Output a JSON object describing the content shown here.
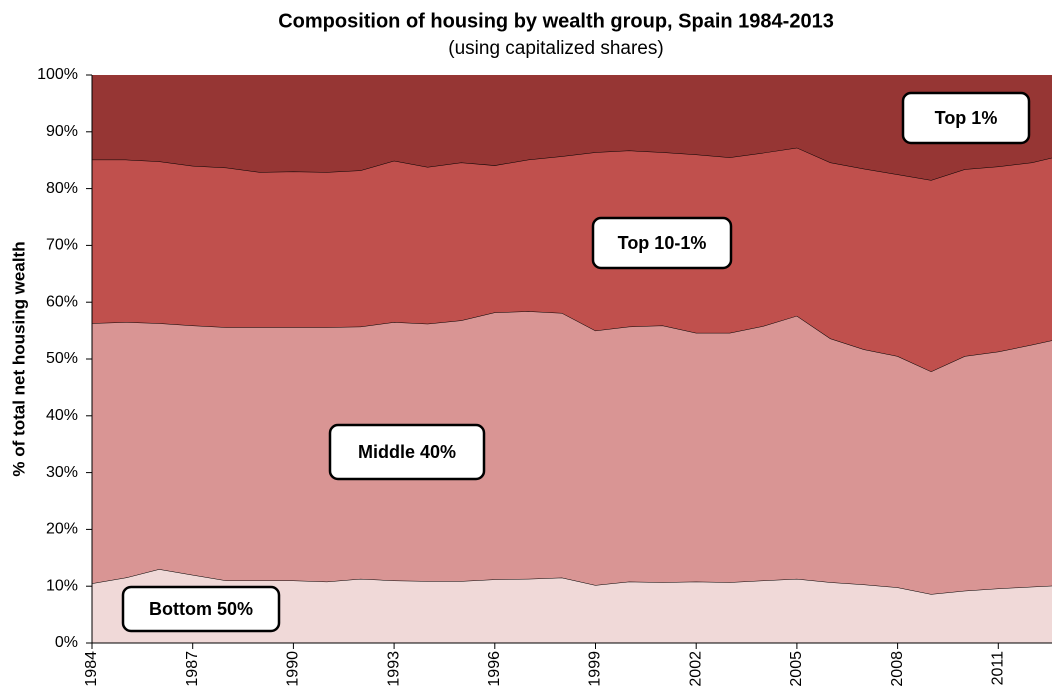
{
  "chart_data": {
    "type": "stacked_area",
    "title": "Composition of housing by wealth group, Spain 1984-2013",
    "subtitle": "(using capitalized shares)",
    "y_label": "% of total net housing wealth",
    "x": [
      1984,
      1985,
      1986,
      1987,
      1988,
      1989,
      1990,
      1991,
      1992,
      1993,
      1994,
      1995,
      1996,
      1997,
      1998,
      1999,
      2000,
      2001,
      2002,
      2003,
      2004,
      2005,
      2006,
      2007,
      2008,
      2009,
      2010,
      2011,
      2012,
      2013
    ],
    "series": [
      {
        "name": "Bottom 50%",
        "color": "#f0d9d8",
        "values": [
          10.5,
          11.5,
          13,
          12,
          11,
          11,
          11,
          10.8,
          11.3,
          11,
          10.9,
          10.9,
          11.2,
          11.3,
          11.5,
          10.2,
          10.8,
          10.7,
          10.8,
          10.7,
          11,
          11.3,
          10.7,
          10.3,
          9.8,
          8.6,
          9.2,
          9.6,
          9.9,
          10.2
        ]
      },
      {
        "name": "Middle 40%",
        "color": "#d99594",
        "values": [
          45.8,
          45.0,
          43.3,
          43.9,
          44.6,
          44.6,
          44.6,
          44.8,
          44.4,
          45.5,
          45.3,
          45.9,
          47.0,
          47.1,
          46.6,
          44.8,
          44.9,
          45.2,
          43.8,
          43.9,
          44.8,
          46.3,
          42.9,
          41.4,
          40.7,
          39.2,
          41.3,
          41.7,
          42.6,
          43.6
        ]
      },
      {
        "name": "Top 10-1%",
        "color": "#c0504d",
        "values": [
          28.8,
          28.6,
          28.5,
          28.1,
          28.1,
          27.3,
          27.4,
          27.3,
          27.5,
          28.4,
          27.6,
          27.8,
          25.9,
          26.7,
          27.6,
          31.4,
          31.0,
          30.5,
          31.4,
          30.9,
          30.5,
          29.6,
          31.0,
          31.8,
          32.0,
          33.7,
          32.9,
          32.6,
          32.1,
          32.2
        ]
      },
      {
        "name": "Top 1%",
        "color": "#963634",
        "values": [
          14.9,
          14.9,
          15.2,
          16.0,
          16.3,
          17.1,
          17.0,
          17.1,
          16.8,
          15.1,
          16.2,
          15.4,
          15.9,
          14.9,
          14.3,
          13.6,
          13.3,
          13.6,
          14.0,
          14.5,
          13.7,
          12.8,
          15.4,
          16.5,
          17.5,
          18.5,
          16.6,
          16.1,
          15.4,
          14.0
        ]
      }
    ],
    "xlim": [
      1984,
      2012.6
    ],
    "xticks": [
      1984,
      1987,
      1990,
      1993,
      1996,
      1999,
      2002,
      2005,
      2008,
      2011
    ],
    "ylim": [
      0,
      100
    ],
    "yticks": [
      {
        "value": 0,
        "label": "0%"
      },
      {
        "value": 10,
        "label": "10%"
      },
      {
        "value": 20,
        "label": "20%"
      },
      {
        "value": 30,
        "label": "30%"
      },
      {
        "value": 40,
        "label": "40%"
      },
      {
        "value": 50,
        "label": "50%"
      },
      {
        "value": 60,
        "label": "60%"
      },
      {
        "value": 70,
        "label": "70%"
      },
      {
        "value": 80,
        "label": "80%"
      },
      {
        "value": 90,
        "label": "90%"
      },
      {
        "value": 100,
        "label": "100%"
      }
    ]
  }
}
